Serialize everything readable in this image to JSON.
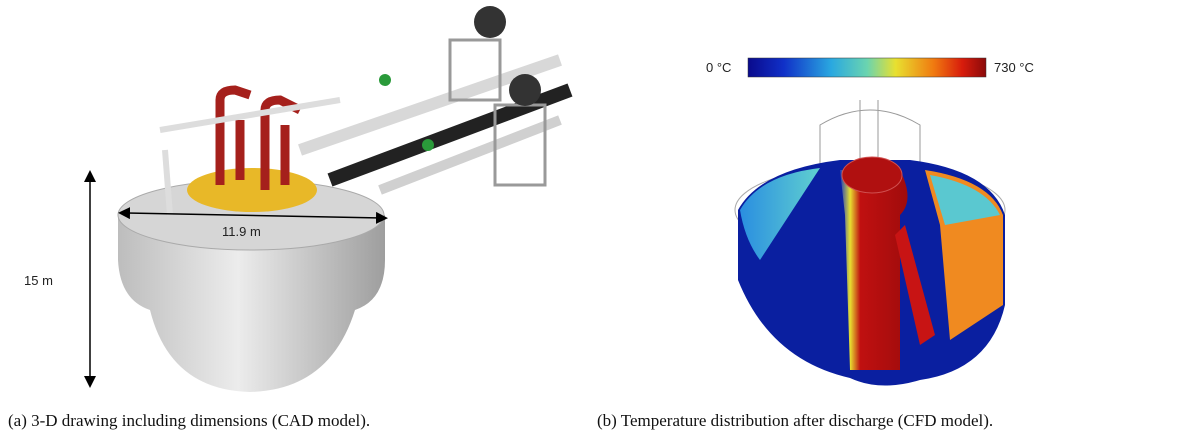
{
  "panels": [
    {
      "labels": {
        "height": "15 m",
        "diameter": "11.9 m"
      },
      "caption": "(a) 3-D drawing including dimensions (CAD model)."
    },
    {
      "colorbar": {
        "min_label": "0 °C",
        "max_label": "730 °C"
      },
      "caption": "(b) Temperature distribution after discharge (CFD model)."
    }
  ]
}
